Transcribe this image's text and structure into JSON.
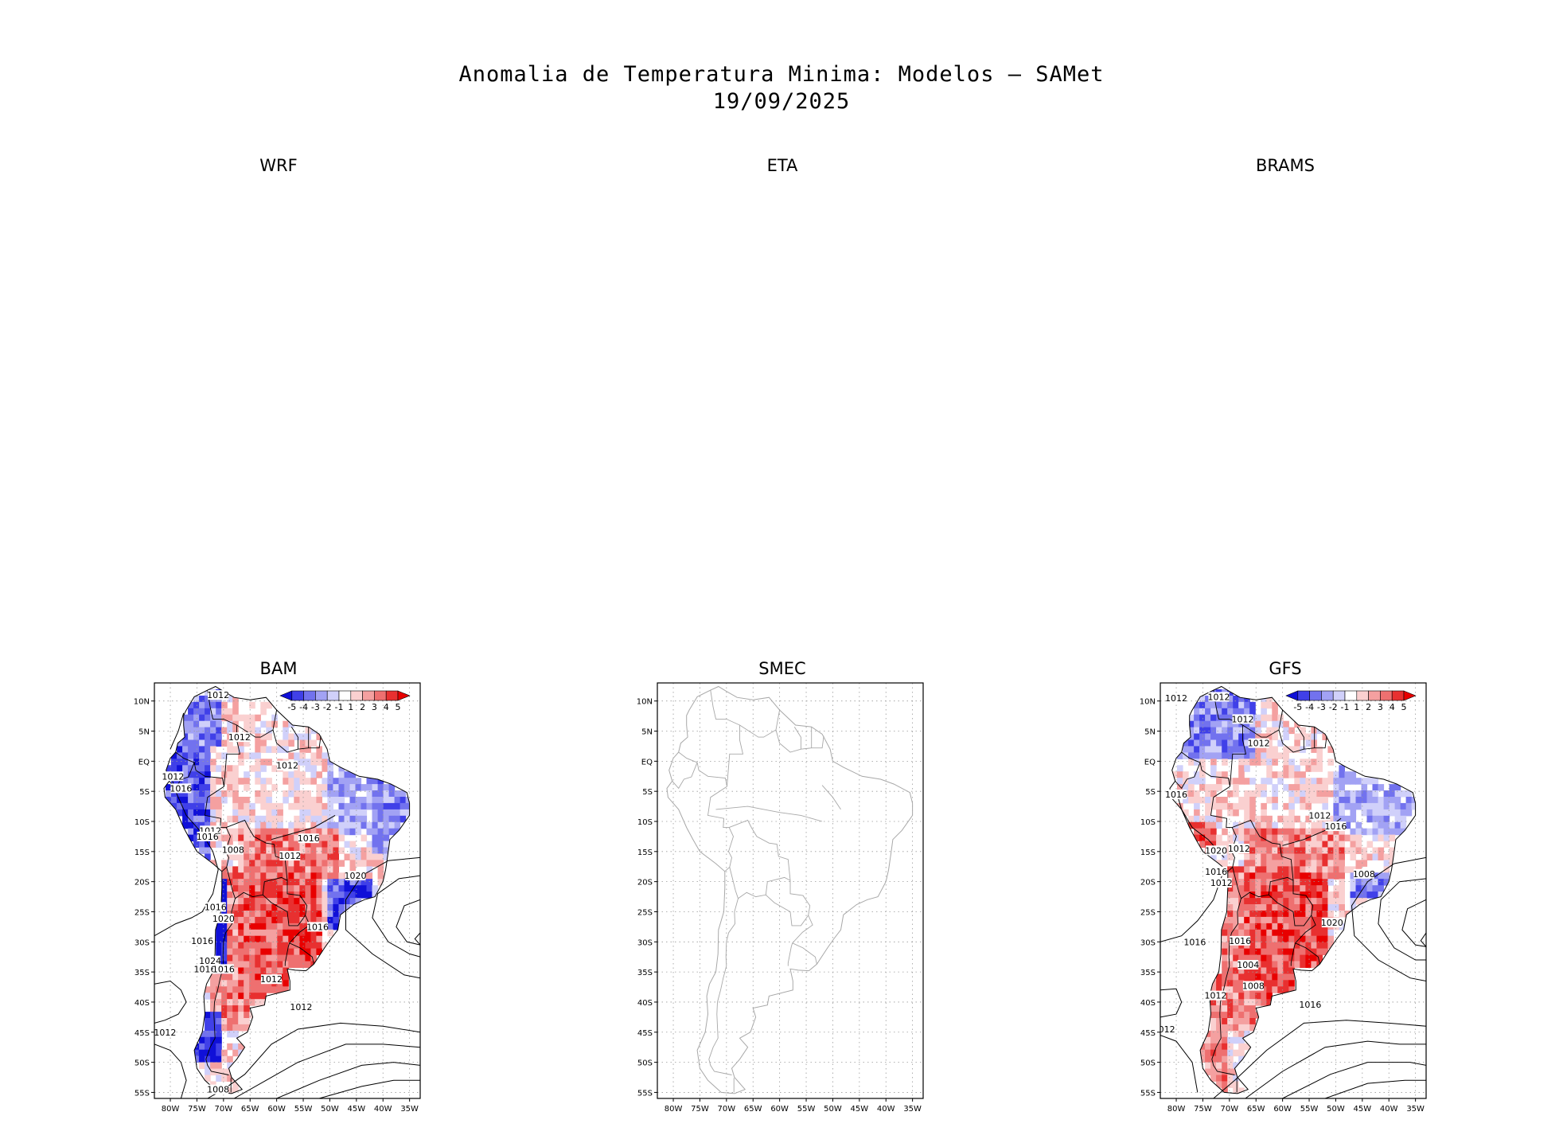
{
  "title": {
    "line1": "Anomalia de Temperatura Minima: Modelos — SAMet",
    "line2": "19/09/2025"
  },
  "panels": [
    {
      "id": "wrf",
      "label": "WRF",
      "has_map": false
    },
    {
      "id": "eta",
      "label": "ETA",
      "has_map": false
    },
    {
      "id": "brams",
      "label": "BRAMS",
      "has_map": false
    },
    {
      "id": "bam",
      "label": "BAM",
      "has_map": true,
      "fill": true,
      "colorbar": true
    },
    {
      "id": "smec",
      "label": "SMEC",
      "has_map": true,
      "fill": false,
      "colorbar": false
    },
    {
      "id": "gfs",
      "label": "GFS",
      "has_map": true,
      "fill": true,
      "colorbar": true
    }
  ],
  "axes": {
    "lon_ticks": [
      "80W",
      "75W",
      "70W",
      "65W",
      "60W",
      "55W",
      "50W",
      "45W",
      "40W",
      "35W"
    ],
    "lat_ticks": [
      "10N",
      "5N",
      "EQ",
      "5S",
      "10S",
      "15S",
      "20S",
      "25S",
      "30S",
      "35S",
      "40S",
      "45S",
      "50S",
      "55S"
    ],
    "lon_range": [
      -83,
      -33
    ],
    "lat_range": [
      -56,
      13
    ]
  },
  "colorbar": {
    "labels": [
      "-5",
      "-4",
      "-3",
      "-2",
      "-1",
      "1",
      "2",
      "3",
      "4",
      "5"
    ],
    "colors": [
      "#1010d8",
      "#4040e8",
      "#7272ee",
      "#a2a2f4",
      "#d0d0fa",
      "#ffffff",
      "#fad0d0",
      "#f4a0a0",
      "#ee7070",
      "#e83030",
      "#e80000"
    ]
  },
  "pressure_labels": {
    "bam": [
      "1012",
      "1012",
      "1012",
      "1012",
      "1016",
      "1012",
      "1016",
      "1016",
      "1008",
      "1012",
      "1020",
      "1016",
      "1020",
      "1016",
      "1016",
      "1024",
      "1016",
      "1012",
      "1016",
      "1012",
      "1012",
      "1008"
    ],
    "gfs": [
      "1012",
      "1012",
      "1012",
      "1012",
      "1012",
      "1016",
      "1016",
      "1012",
      "1020",
      "1008",
      "1016",
      "1012",
      "1020",
      "1016",
      "1016",
      "1004",
      "1008",
      "1012",
      "1016",
      "1012",
      "1012"
    ]
  }
}
